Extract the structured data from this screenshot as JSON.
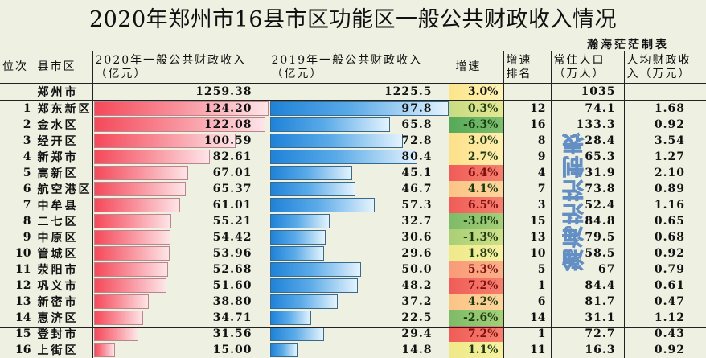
{
  "title": "2020年郑州市16县市区功能区一般公共财政收入情况",
  "credit": "瀚海茫茫制表",
  "watermark": "瀚海茫茫制表",
  "headers": {
    "rank": "位次",
    "name": "县市区",
    "rev2020_l1": "2020年一般公共财政收入",
    "rev2020_l2": "（亿元）",
    "rev2019_l1": "2019年一般公共财政收入",
    "rev2019_l2": "（亿元）",
    "growth": "增速",
    "growth_rank_l1": "增速",
    "growth_rank_l2": "排名",
    "pop_l1": "常住人口",
    "pop_l2": "（万人）",
    "per_l1": "人均财政收",
    "per_l2": "入（万元）"
  },
  "city": {
    "name": "郑州市",
    "rev2020": "1259.38",
    "rev2019": "1225.5",
    "growth": "3.0%",
    "pop": "1035"
  },
  "rows": [
    {
      "rank": "1",
      "name": "郑东新区",
      "rev2020": "124.20",
      "rev2019": "97.8",
      "growth": "0.3%",
      "growth_rank": "12",
      "pop": "74.1",
      "per": "1.68"
    },
    {
      "rank": "2",
      "name": "金水区",
      "rev2020": "122.08",
      "rev2019": "65.8",
      "growth": "-6.3%",
      "growth_rank": "16",
      "pop": "133.3",
      "per": "0.92"
    },
    {
      "rank": "3",
      "name": "经开区",
      "rev2020": "100.59",
      "rev2019": "72.8",
      "growth": "3.0%",
      "growth_rank": "8",
      "pop": "28.4",
      "per": "3.54"
    },
    {
      "rank": "4",
      "name": "新郑市",
      "rev2020": "82.61",
      "rev2019": "80.4",
      "growth": "2.7%",
      "growth_rank": "9",
      "pop": "65.3",
      "per": "1.27"
    },
    {
      "rank": "5",
      "name": "高新区",
      "rev2020": "67.01",
      "rev2019": "45.1",
      "growth": "6.4%",
      "growth_rank": "4",
      "pop": "31.9",
      "per": "2.10"
    },
    {
      "rank": "6",
      "name": "航空港区",
      "rev2020": "65.37",
      "rev2019": "46.7",
      "growth": "4.1%",
      "growth_rank": "7",
      "pop": "73.8",
      "per": "0.89"
    },
    {
      "rank": "7",
      "name": "中牟县",
      "rev2020": "61.01",
      "rev2019": "57.3",
      "growth": "6.5%",
      "growth_rank": "3",
      "pop": "52.4",
      "per": "1.16"
    },
    {
      "rank": "8",
      "name": "二七区",
      "rev2020": "55.21",
      "rev2019": "32.7",
      "growth": "-3.8%",
      "growth_rank": "15",
      "pop": "84.8",
      "per": "0.65"
    },
    {
      "rank": "9",
      "name": "中原区",
      "rev2020": "54.42",
      "rev2019": "30.6",
      "growth": "-1.3%",
      "growth_rank": "13",
      "pop": "79.5",
      "per": "0.68"
    },
    {
      "rank": "10",
      "name": "管城区",
      "rev2020": "53.96",
      "rev2019": "29.6",
      "growth": "1.8%",
      "growth_rank": "10",
      "pop": "58.5",
      "per": "0.92"
    },
    {
      "rank": "11",
      "name": "荥阳市",
      "rev2020": "52.68",
      "rev2019": "50.0",
      "growth": "5.3%",
      "growth_rank": "5",
      "pop": "67",
      "per": "0.79"
    },
    {
      "rank": "12",
      "name": "巩义市",
      "rev2020": "51.60",
      "rev2019": "48.2",
      "growth": "7.2%",
      "growth_rank": "1",
      "pop": "84.4",
      "per": "0.61"
    },
    {
      "rank": "13",
      "name": "新密市",
      "rev2020": "38.80",
      "rev2019": "37.2",
      "growth": "4.2%",
      "growth_rank": "6",
      "pop": "81.7",
      "per": "0.47"
    },
    {
      "rank": "14",
      "name": "惠济区",
      "rev2020": "34.71",
      "rev2019": "22.5",
      "growth": "-2.6%",
      "growth_rank": "14",
      "pop": "31.1",
      "per": "1.12"
    },
    {
      "rank": "15",
      "name": "登封市",
      "rev2020": "31.56",
      "rev2019": "29.4",
      "growth": "7.2%",
      "growth_rank": "1",
      "pop": "72.7",
      "per": "0.43"
    },
    {
      "rank": "16",
      "name": "上街区",
      "rev2020": "15.00",
      "rev2019": "14.8",
      "growth": "1.1%",
      "growth_rank": "11",
      "pop": "16.3",
      "per": "0.92"
    }
  ],
  "colors": {
    "background": "#eef0e2",
    "bar2020": "#f5495a",
    "bar2019": "#1f82d8",
    "growth_high": "#f26a5e",
    "growth_mid": "#fbd98a",
    "growth_low": "#f3ea86",
    "growth_neg": "#6cb56a"
  },
  "chart_data": {
    "type": "table",
    "title": "2020年郑州市16县市区功能区一般公共财政收入情况",
    "columns": [
      "位次",
      "县市区",
      "2020年一般公共财政收入（亿元）",
      "2019年一般公共财政收入（亿元）",
      "增速",
      "增速排名",
      "常住人口（万人）",
      "人均财政收入（万元）"
    ],
    "categories": [
      "郑东新区",
      "金水区",
      "经开区",
      "新郑市",
      "高新区",
      "航空港区",
      "中牟县",
      "二七区",
      "中原区",
      "管城区",
      "荥阳市",
      "巩义市",
      "新密市",
      "惠济区",
      "登封市",
      "上街区"
    ],
    "series": [
      {
        "name": "2020年一般公共财政收入（亿元）",
        "values": [
          124.2,
          122.08,
          100.59,
          82.61,
          67.01,
          65.37,
          61.01,
          55.21,
          54.42,
          53.96,
          52.68,
          51.6,
          38.8,
          34.71,
          31.56,
          15.0
        ]
      },
      {
        "name": "2019年一般公共财政收入（亿元）",
        "values": [
          97.8,
          65.8,
          72.8,
          80.4,
          45.1,
          46.7,
          57.3,
          32.7,
          30.6,
          29.6,
          50.0,
          48.2,
          37.2,
          22.5,
          29.4,
          14.8
        ]
      },
      {
        "name": "增速(%)",
        "values": [
          0.3,
          -6.3,
          3.0,
          2.7,
          6.4,
          4.1,
          6.5,
          -3.8,
          -1.3,
          1.8,
          5.3,
          7.2,
          4.2,
          -2.6,
          7.2,
          1.1
        ]
      },
      {
        "name": "增速排名",
        "values": [
          12,
          16,
          8,
          9,
          4,
          7,
          3,
          15,
          13,
          10,
          5,
          1,
          6,
          14,
          1,
          11
        ]
      },
      {
        "name": "常住人口（万人）",
        "values": [
          74.1,
          133.3,
          28.4,
          65.3,
          31.9,
          73.8,
          52.4,
          84.8,
          79.5,
          58.5,
          67,
          84.4,
          81.7,
          31.1,
          72.7,
          16.3
        ]
      },
      {
        "name": "人均财政收入（万元）",
        "values": [
          1.68,
          0.92,
          3.54,
          1.27,
          2.1,
          0.89,
          1.16,
          0.65,
          0.68,
          0.92,
          0.79,
          0.61,
          0.47,
          1.12,
          0.43,
          0.92
        ]
      }
    ],
    "totals": {
      "name": "郑州市",
      "rev2020": 1259.38,
      "rev2019": 1225.5,
      "growth": 3.0,
      "pop": 1035
    },
    "bar_max": {
      "rev2020": 124.2,
      "rev2019": 97.8
    }
  }
}
